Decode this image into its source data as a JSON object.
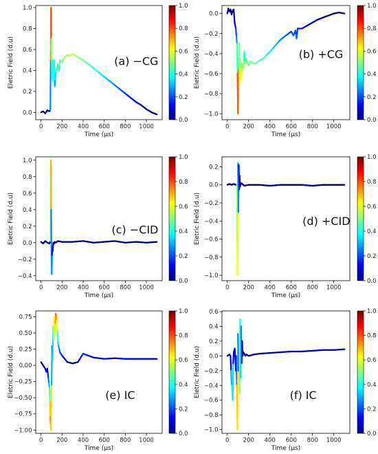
{
  "chart_data": [
    {
      "type": "line",
      "label": "(a) −CG",
      "xlabel": "Time (μs)",
      "ylabel": "Eletric Field (d.u)",
      "xlim": [
        -50,
        1150
      ],
      "ylim": [
        -0.07,
        1.02
      ],
      "xticks": [
        0,
        200,
        400,
        600,
        800,
        1000
      ],
      "yticks": [
        0.0,
        0.2,
        0.4,
        0.6,
        0.8,
        1.0
      ],
      "ytick_labels": [
        "0.0",
        "0.2",
        "0.4",
        "0.6",
        "0.8",
        "1.0"
      ],
      "colorbar": {
        "range": [
          0.0,
          1.0
        ],
        "ticks": [
          "0.0",
          "0.2",
          "0.4",
          "0.6",
          "0.8",
          "1.0"
        ],
        "colormap": "jet"
      },
      "x": [
        0,
        20,
        40,
        60,
        80,
        88,
        92,
        95,
        97,
        100,
        103,
        106,
        110,
        115,
        120,
        125,
        130,
        140,
        150,
        160,
        170,
        180,
        200,
        220,
        250,
        280,
        300,
        330,
        360,
        400,
        450,
        500,
        550,
        600,
        650,
        700,
        750,
        800,
        850,
        900,
        950,
        1000,
        1050,
        1100
      ],
      "values": [
        0.0,
        0.01,
        -0.01,
        0.02,
        0.01,
        0.02,
        0.5,
        1.0,
        0.6,
        0.7,
        0.35,
        0.5,
        0.3,
        0.45,
        0.35,
        0.5,
        0.25,
        0.38,
        0.42,
        0.46,
        0.4,
        0.5,
        0.48,
        0.52,
        0.55,
        0.54,
        0.56,
        0.54,
        0.52,
        0.5,
        0.46,
        0.42,
        0.38,
        0.34,
        0.3,
        0.26,
        0.22,
        0.18,
        0.14,
        0.1,
        0.07,
        0.03,
        0.0,
        -0.02
      ]
    },
    {
      "type": "line",
      "label": "(b) +CG",
      "xlabel": "Time (μs)",
      "ylabel": "Eletric Field (d.u)",
      "xlim": [
        -50,
        1150
      ],
      "ylim": [
        -1.06,
        0.08
      ],
      "xticks": [
        0,
        200,
        400,
        600,
        800,
        1000
      ],
      "yticks": [
        -1.0,
        -0.8,
        -0.6,
        -0.4,
        -0.2,
        0.0
      ],
      "ytick_labels": [
        "−1.0",
        "−0.8",
        "−0.6",
        "−0.4",
        "−0.2",
        "0.0"
      ],
      "colorbar": {
        "range": [
          0.0,
          1.0
        ],
        "ticks": [
          "0.0",
          "0.2",
          "0.4",
          "0.6",
          "0.8",
          "1.0"
        ],
        "colormap": "jet"
      },
      "x": [
        0,
        10,
        20,
        30,
        40,
        50,
        60,
        70,
        80,
        90,
        95,
        100,
        105,
        110,
        115,
        120,
        130,
        140,
        150,
        160,
        170,
        180,
        200,
        220,
        250,
        280,
        300,
        320,
        350,
        380,
        400,
        450,
        500,
        550,
        600,
        620,
        640,
        650,
        660,
        700,
        750,
        800,
        850,
        900,
        950,
        1000,
        1050,
        1100
      ],
      "values": [
        0.0,
        0.05,
        0.02,
        0.04,
        -0.01,
        0.03,
        0.04,
        -0.1,
        -0.15,
        -0.3,
        -0.6,
        -1.0,
        -0.55,
        -0.3,
        -0.7,
        -0.45,
        -0.65,
        -0.5,
        -0.55,
        -0.38,
        -0.5,
        -0.45,
        -0.52,
        -0.48,
        -0.5,
        -0.49,
        -0.47,
        -0.46,
        -0.44,
        -0.4,
        -0.38,
        -0.32,
        -0.26,
        -0.22,
        -0.18,
        -0.22,
        -0.17,
        -0.25,
        -0.15,
        -0.15,
        -0.12,
        -0.09,
        -0.06,
        -0.04,
        -0.02,
        0.0,
        0.01,
        0.0
      ]
    },
    {
      "type": "line",
      "label": "(c) −CID",
      "xlabel": "Time (μs)",
      "ylabel": "Eletric Field (d.u)",
      "xlim": [
        -50,
        1150
      ],
      "ylim": [
        -0.46,
        1.04
      ],
      "xticks": [
        0,
        200,
        400,
        600,
        800,
        1000
      ],
      "yticks": [
        -0.4,
        -0.2,
        0.0,
        0.2,
        0.4,
        0.6,
        0.8,
        1.0
      ],
      "ytick_labels": [
        "−0.4",
        "−0.2",
        "0.0",
        "0.2",
        "0.4",
        "0.6",
        "0.8",
        "1.0"
      ],
      "colorbar": {
        "range": [
          0.0,
          1.0
        ],
        "ticks": [
          "0.0",
          "0.2",
          "0.4",
          "0.6",
          "0.8",
          "1.0"
        ],
        "colormap": "jet"
      },
      "x": [
        0,
        20,
        40,
        60,
        80,
        90,
        93,
        96,
        99,
        102,
        105,
        108,
        112,
        116,
        120,
        130,
        140,
        160,
        200,
        300,
        400,
        500,
        600,
        700,
        800,
        900,
        1000,
        1100
      ],
      "values": [
        0.01,
        -0.01,
        0.02,
        0.0,
        -0.01,
        0.02,
        1.0,
        0.4,
        -0.1,
        -0.38,
        -0.15,
        -0.05,
        -0.1,
        0.0,
        -0.02,
        0.01,
        0.0,
        0.02,
        0.01,
        0.01,
        0.02,
        0.0,
        0.01,
        0.02,
        0.0,
        0.01,
        0.0,
        0.01
      ]
    },
    {
      "type": "line",
      "label": "(d) +CID",
      "xlabel": "Time (μs)",
      "ylabel": "Eletric Field (d.u)",
      "xlim": [
        -50,
        1150
      ],
      "ylim": [
        -1.06,
        0.31
      ],
      "xticks": [
        0,
        200,
        400,
        600,
        800,
        1000
      ],
      "yticks": [
        -1.0,
        -0.8,
        -0.6,
        -0.4,
        -0.2,
        0.0,
        0.2
      ],
      "ytick_labels": [
        "−1.0",
        "−0.8",
        "−0.6",
        "−0.4",
        "−0.2",
        "0.0",
        "0.2"
      ],
      "colorbar": {
        "range": [
          0.0,
          1.0
        ],
        "ticks": [
          "0.0",
          "0.2",
          "0.4",
          "0.6",
          "0.8",
          "1.0"
        ],
        "colormap": "jet"
      },
      "x": [
        0,
        20,
        40,
        60,
        80,
        90,
        95,
        100,
        104,
        108,
        112,
        116,
        120,
        130,
        140,
        160,
        200,
        300,
        400,
        500,
        600,
        700,
        800,
        900,
        1000,
        1100
      ],
      "values": [
        0.0,
        0.01,
        0.0,
        0.01,
        0.0,
        0.0,
        -1.0,
        0.24,
        -0.3,
        0.22,
        -0.05,
        0.1,
        -0.02,
        0.02,
        0.01,
        -0.01,
        0.0,
        0.0,
        -0.01,
        0.0,
        0.0,
        0.0,
        -0.01,
        0.0,
        0.0,
        0.0
      ]
    },
    {
      "type": "line",
      "label": "(e) IC",
      "xlabel": "Time (μs)",
      "ylabel": "Eletric Field (d.u)",
      "xlim": [
        -50,
        1150
      ],
      "ylim": [
        -1.05,
        0.84
      ],
      "xticks": [
        0,
        200,
        400,
        600,
        800,
        1000
      ],
      "yticks": [
        -1.0,
        -0.75,
        -0.5,
        -0.25,
        0.0,
        0.25,
        0.5,
        0.75
      ],
      "ytick_labels": [
        "−1.00",
        "−0.75",
        "−0.50",
        "−0.25",
        "0.00",
        "0.25",
        "0.50",
        "0.75"
      ],
      "colorbar": {
        "range": [
          0.0,
          1.0
        ],
        "ticks": [
          "0.0",
          "0.2",
          "0.4",
          "0.6",
          "0.8",
          "1.0"
        ],
        "colormap": "jet"
      },
      "x": [
        0,
        20,
        40,
        50,
        60,
        70,
        80,
        90,
        95,
        100,
        105,
        110,
        115,
        120,
        125,
        130,
        140,
        150,
        160,
        180,
        200,
        250,
        300,
        350,
        400,
        450,
        500,
        600,
        700,
        800,
        900,
        1000,
        1100
      ],
      "values": [
        0.05,
        0.0,
        -0.05,
        -0.1,
        -0.05,
        -0.2,
        -0.35,
        -0.8,
        -1.0,
        -0.3,
        0.3,
        0.1,
        0.6,
        0.4,
        0.75,
        0.5,
        0.8,
        0.7,
        0.35,
        0.2,
        0.15,
        0.05,
        0.03,
        0.05,
        0.18,
        0.15,
        0.12,
        0.1,
        0.11,
        0.1,
        0.1,
        0.1,
        0.1
      ]
    },
    {
      "type": "line",
      "label": "(f) IC",
      "xlabel": "Time (μs)",
      "ylabel": "Eletric Field (d.u)",
      "xlim": [
        -50,
        1150
      ],
      "ylim": [
        -1.05,
        0.61
      ],
      "xticks": [
        0,
        200,
        400,
        600,
        800,
        1000
      ],
      "yticks": [
        -1.0,
        -0.8,
        -0.6,
        -0.4,
        -0.2,
        0.0,
        0.2,
        0.4,
        0.6
      ],
      "ytick_labels": [
        "−1.0",
        "−0.8",
        "−0.6",
        "−0.4",
        "−0.2",
        "0.0",
        "0.2",
        "0.4",
        "0.6"
      ],
      "colorbar": {
        "range": [
          0.0,
          1.0
        ],
        "ticks": [
          "0.0",
          "0.2",
          "0.4",
          "0.6",
          "0.8",
          "1.0"
        ],
        "colormap": "jet"
      },
      "x": [
        0,
        20,
        30,
        40,
        50,
        55,
        60,
        70,
        80,
        85,
        90,
        95,
        100,
        105,
        110,
        115,
        120,
        125,
        130,
        135,
        140,
        145,
        150,
        160,
        170,
        180,
        200,
        250,
        300,
        400,
        500,
        600,
        700,
        800,
        900,
        1000,
        1100
      ],
      "values": [
        0.0,
        0.02,
        0.0,
        -0.4,
        -0.6,
        -0.1,
        0.05,
        0.1,
        -0.2,
        0.0,
        -0.4,
        -1.0,
        0.3,
        -0.2,
        0.2,
        -0.5,
        0.5,
        -0.3,
        0.4,
        -0.1,
        0.2,
        0.0,
        0.05,
        0.03,
        0.0,
        0.02,
        0.0,
        0.02,
        0.03,
        0.04,
        0.05,
        0.06,
        0.06,
        0.07,
        0.08,
        0.08,
        0.09
      ]
    }
  ]
}
